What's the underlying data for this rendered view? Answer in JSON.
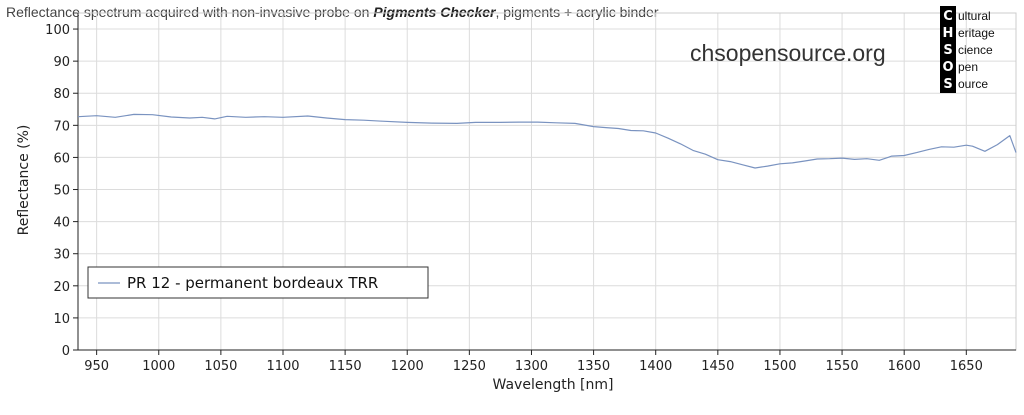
{
  "title_prefix": "Reflectance spectrum acquired with non-invasive probe on ",
  "title_emphasis": "Pigments Checker",
  "title_suffix": ", pigments + acrylic binder",
  "watermark": "chsopensource.org",
  "logo": {
    "letters": [
      "C",
      "H",
      "S",
      "O",
      "S"
    ],
    "rest": [
      "ultural",
      "eritage",
      "cience",
      "pen",
      "ource"
    ]
  },
  "colors": {
    "series": "#7a93c0",
    "grid": "#dcdcdc",
    "axis": "#222222",
    "logo_bg": "#000000"
  },
  "chart_data": {
    "type": "line",
    "xlabel": "Wavelength [nm]",
    "ylabel": "Reflectance (%)",
    "xlim": [
      935,
      1690
    ],
    "ylim": [
      0,
      105
    ],
    "x_ticks": [
      950,
      1000,
      1050,
      1100,
      1150,
      1200,
      1250,
      1300,
      1350,
      1400,
      1450,
      1500,
      1550,
      1600,
      1650
    ],
    "y_ticks": [
      0,
      10,
      20,
      30,
      40,
      50,
      60,
      70,
      80,
      90,
      100
    ],
    "grid": true,
    "legend_position": "bottom-left",
    "series": [
      {
        "name": "PR 12 - permanent bordeaux TRR",
        "x": [
          935,
          950,
          965,
          980,
          995,
          1010,
          1025,
          1035,
          1045,
          1055,
          1070,
          1085,
          1100,
          1120,
          1135,
          1150,
          1165,
          1180,
          1200,
          1220,
          1240,
          1255,
          1275,
          1290,
          1305,
          1320,
          1335,
          1350,
          1360,
          1370,
          1380,
          1390,
          1400,
          1410,
          1420,
          1430,
          1440,
          1450,
          1460,
          1470,
          1480,
          1490,
          1500,
          1510,
          1520,
          1530,
          1540,
          1550,
          1560,
          1570,
          1580,
          1590,
          1600,
          1610,
          1620,
          1630,
          1640,
          1650,
          1655,
          1665,
          1675,
          1685,
          1690
        ],
        "y": [
          72.7,
          73.0,
          72.5,
          73.4,
          73.3,
          72.6,
          72.3,
          72.5,
          72.0,
          72.8,
          72.5,
          72.7,
          72.5,
          72.9,
          72.3,
          71.8,
          71.6,
          71.3,
          70.9,
          70.7,
          70.6,
          70.9,
          70.9,
          71.0,
          71.0,
          70.8,
          70.6,
          69.6,
          69.3,
          69.0,
          68.4,
          68.3,
          67.6,
          66.0,
          64.2,
          62.2,
          61.0,
          59.3,
          58.7,
          57.7,
          56.7,
          57.3,
          58.0,
          58.3,
          58.9,
          59.5,
          59.6,
          59.8,
          59.4,
          59.6,
          59.1,
          60.4,
          60.6,
          61.5,
          62.5,
          63.3,
          63.2,
          63.8,
          63.5,
          61.9,
          64.0,
          66.8,
          61.5
        ]
      }
    ]
  }
}
